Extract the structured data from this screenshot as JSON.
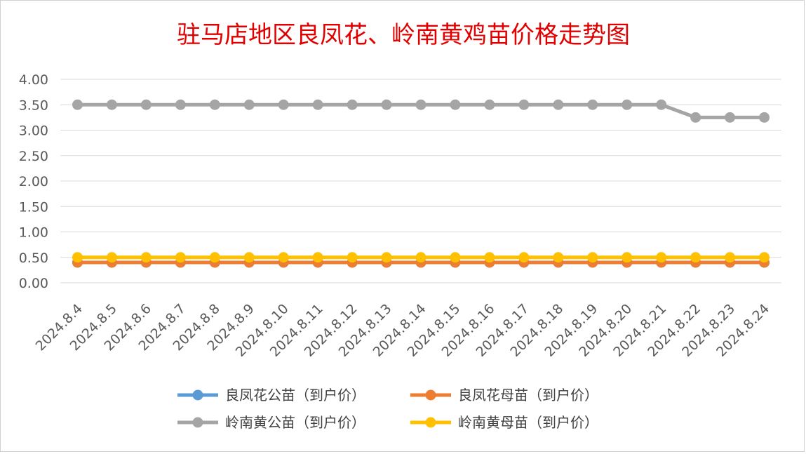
{
  "chart_data": {
    "type": "line",
    "title": "驻马店地区良凤花、岭南黄鸡苗价格走势图",
    "xlabel": "",
    "ylabel": "",
    "ylim": [
      0,
      4
    ],
    "yticks": [
      "0.00",
      "0.50",
      "1.00",
      "1.50",
      "2.00",
      "2.50",
      "3.00",
      "3.50",
      "4.00"
    ],
    "grid": true,
    "legend_position": "bottom",
    "categories": [
      "2024.8.4",
      "2024.8.5",
      "2024.8.6",
      "2024.8.7",
      "2024.8.8",
      "2024.8.9",
      "2024.8.10",
      "2024.8.11",
      "2024.8.12",
      "2024.8.13",
      "2024.8.14",
      "2024.8.15",
      "2024.8.16",
      "2024.8.17",
      "2024.8.18",
      "2024.8.19",
      "2024.8.20",
      "2024.8.21",
      "2024.8.22",
      "2024.8.23",
      "2024.8.24"
    ],
    "series": [
      {
        "name": "良凤花公苗（到户价）",
        "color": "#5b9bd5",
        "values": [
          0.4,
          0.4,
          0.4,
          0.4,
          0.4,
          0.4,
          0.4,
          0.4,
          0.4,
          0.4,
          0.4,
          0.4,
          0.4,
          0.4,
          0.4,
          0.4,
          0.4,
          0.4,
          0.4,
          0.4,
          0.4
        ]
      },
      {
        "name": "良凤花母苗（到户价）",
        "color": "#ed7d31",
        "values": [
          0.4,
          0.4,
          0.4,
          0.4,
          0.4,
          0.4,
          0.4,
          0.4,
          0.4,
          0.4,
          0.4,
          0.4,
          0.4,
          0.4,
          0.4,
          0.4,
          0.4,
          0.4,
          0.4,
          0.4,
          0.4
        ]
      },
      {
        "name": "岭南黄公苗（到户价）",
        "color": "#a5a5a5",
        "values": [
          3.5,
          3.5,
          3.5,
          3.5,
          3.5,
          3.5,
          3.5,
          3.5,
          3.5,
          3.5,
          3.5,
          3.5,
          3.5,
          3.5,
          3.5,
          3.5,
          3.5,
          3.5,
          3.25,
          3.25,
          3.25
        ]
      },
      {
        "name": "岭南黄母苗（到户价）",
        "color": "#ffc000",
        "values": [
          0.5,
          0.5,
          0.5,
          0.5,
          0.5,
          0.5,
          0.5,
          0.5,
          0.5,
          0.5,
          0.5,
          0.5,
          0.5,
          0.5,
          0.5,
          0.5,
          0.5,
          0.5,
          0.5,
          0.5,
          0.5
        ]
      }
    ]
  }
}
